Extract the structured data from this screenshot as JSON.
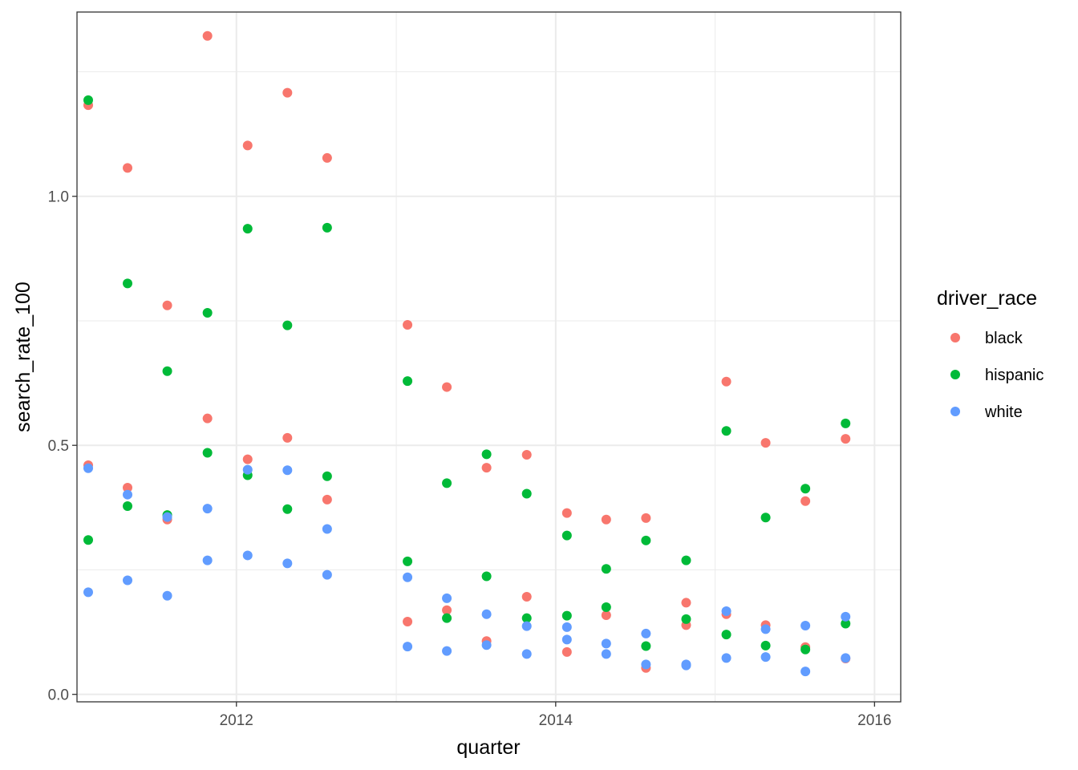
{
  "chart_data": {
    "type": "scatter",
    "title": "",
    "xlabel": "quarter",
    "ylabel": "search_rate_100",
    "xlim": [
      "2011-01-01",
      "2016-03-01"
    ],
    "ylim": [
      -0.015,
      1.37
    ],
    "x_ticks": [
      "2012",
      "2014",
      "2016"
    ],
    "y_ticks": [
      "0.0",
      "0.5",
      "1.0"
    ],
    "grid": true,
    "legend": {
      "title": "driver_race",
      "position": "right"
    },
    "x": [
      "2011-01",
      "2011-04",
      "2011-07",
      "2011-10",
      "2012-01",
      "2012-04",
      "2012-07",
      "2013-01",
      "2013-04",
      "2013-07",
      "2013-10",
      "2014-01",
      "2014-04",
      "2014-07",
      "2014-10",
      "2015-01",
      "2015-04",
      "2015-07",
      "2015-10"
    ],
    "series": [
      {
        "name": "black",
        "color": "#F8766D",
        "values": [
          1.183,
          1.057,
          0.781,
          1.322,
          1.102,
          1.208,
          1.077,
          0.742,
          0.617,
          0.455,
          0.481,
          0.364,
          0.351,
          0.354,
          0.184,
          0.628,
          0.505,
          0.388,
          0.513
        ]
      },
      {
        "name": "black",
        "color": "#F8766D",
        "values": [
          0.46,
          0.415,
          0.351,
          0.554,
          0.472,
          0.515,
          0.391,
          0.146,
          0.169,
          0.107,
          0.196,
          0.085,
          0.159,
          0.053,
          0.139,
          0.161,
          0.139,
          0.095,
          0.072
        ]
      },
      {
        "name": "hispanic",
        "color": "#00BA38",
        "values": [
          1.193,
          0.825,
          0.649,
          0.766,
          0.935,
          0.741,
          0.937,
          0.629,
          0.424,
          0.482,
          0.403,
          0.319,
          0.252,
          0.309,
          0.269,
          0.529,
          0.355,
          0.413,
          0.544
        ]
      },
      {
        "name": "hispanic",
        "color": "#00BA38",
        "values": [
          0.31,
          0.378,
          0.36,
          0.485,
          0.44,
          0.372,
          0.438,
          0.267,
          0.153,
          0.237,
          0.153,
          0.158,
          0.175,
          0.097,
          0.151,
          0.12,
          0.098,
          0.09,
          0.142
        ]
      },
      {
        "name": "white",
        "color": "#619CFF",
        "values": [
          0.454,
          0.401,
          0.356,
          0.373,
          0.451,
          0.45,
          0.332,
          0.235,
          0.193,
          0.161,
          0.137,
          0.135,
          0.102,
          0.122,
          0.06,
          0.167,
          0.131,
          0.138,
          0.156
        ]
      },
      {
        "name": "white",
        "color": "#619CFF",
        "values": [
          0.205,
          0.229,
          0.198,
          0.269,
          0.279,
          0.263,
          0.24,
          0.096,
          0.087,
          0.099,
          0.081,
          0.11,
          0.081,
          0.06,
          0.058,
          0.073,
          0.075,
          0.046,
          0.073
        ]
      }
    ]
  }
}
